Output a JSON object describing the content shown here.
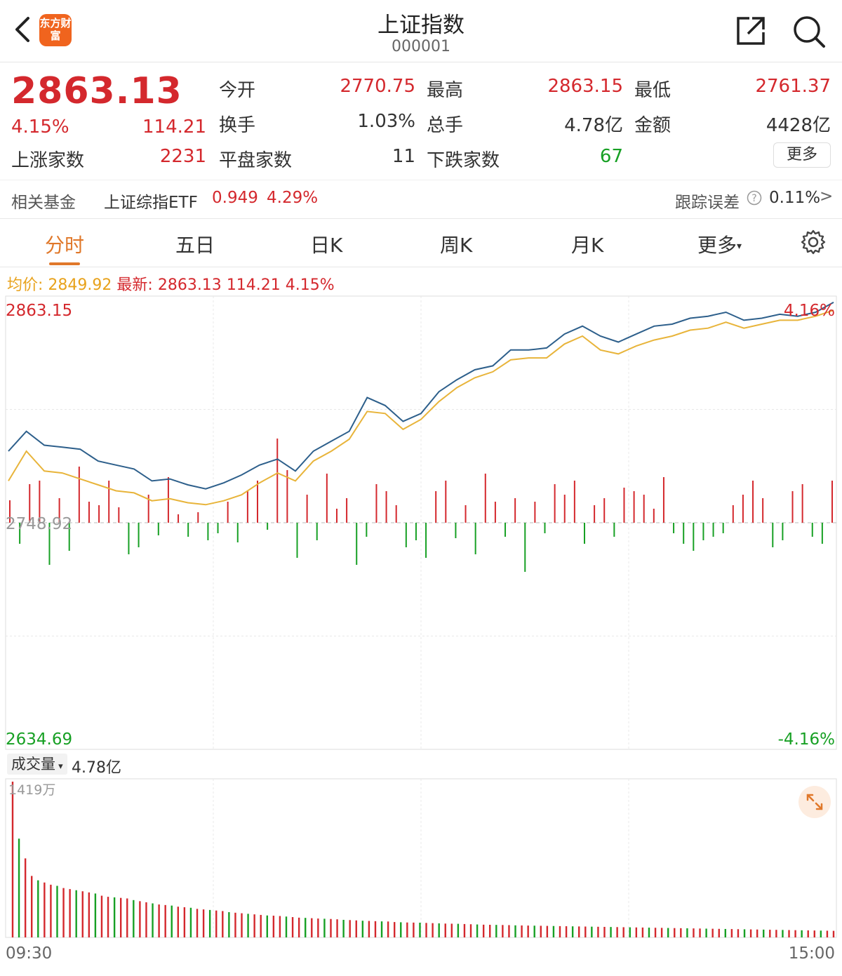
{
  "header": {
    "title": "上证指数",
    "code": "000001",
    "logo_text": "东方财富"
  },
  "quote": {
    "price": "2863.13",
    "change_pct": "4.15%",
    "change": "114.21",
    "open_label": "今开",
    "open": "2770.75",
    "high_label": "最高",
    "high": "2863.15",
    "low_label": "最低",
    "low": "2761.37",
    "turnover_label": "换手",
    "turnover": "1.03%",
    "volume_label": "总手",
    "volume": "4.78亿",
    "amount_label": "金额",
    "amount": "4428亿",
    "up_label": "上涨家数",
    "up": "2231",
    "flat_label": "平盘家数",
    "flat": "11",
    "down_label": "下跌家数",
    "down": "67",
    "more": "更多"
  },
  "fund": {
    "label": "相关基金",
    "name": "上证综指ETF",
    "price": "0.949",
    "pct": "4.29%",
    "tracking_label": "跟踪误差",
    "tracking_value": "0.11%",
    "arrow": ">"
  },
  "tabs": [
    "分时",
    "五日",
    "日K",
    "周K",
    "月K",
    "更多"
  ],
  "legend": {
    "avg_label": "均价:",
    "avg": "2849.92",
    "latest_label": "最新:",
    "latest": "2863.13",
    "change": "114.21",
    "pct": "4.15%"
  },
  "chart_data": {
    "type": "line",
    "y_top": "2863.15",
    "y_mid": "2748.92",
    "y_bottom": "2634.69",
    "pct_top": "4.16%",
    "pct_bottom": "-4.16%",
    "ylim": [
      2634.69,
      2863.15
    ],
    "x_start": "09:30",
    "x_end": "15:00",
    "series": [
      {
        "values": [
          2785,
          2795,
          2788,
          2787,
          2786,
          2780,
          2778,
          2776,
          2770,
          2771,
          2768,
          2766,
          2769,
          2773,
          2778,
          2781,
          2775,
          2785,
          2790,
          2795,
          2812,
          2808,
          2800,
          2804,
          2815,
          2821,
          2826,
          2828,
          2836,
          2836,
          2837,
          2844,
          2848,
          2843,
          2840,
          2844,
          2848,
          2849,
          2852,
          2853,
          2855,
          2851,
          2852,
          2854,
          2853,
          2855,
          2860
        ]
      },
      {
        "values": [
          2770,
          2785,
          2775,
          2774,
          2771,
          2768,
          2765,
          2764,
          2760,
          2761,
          2759,
          2758,
          2760,
          2763,
          2769,
          2774,
          2770,
          2780,
          2785,
          2791,
          2805,
          2804,
          2796,
          2801,
          2810,
          2817,
          2822,
          2825,
          2831,
          2832,
          2832,
          2839,
          2843,
          2836,
          2834,
          2838,
          2841,
          2843,
          2846,
          2847,
          2850,
          2847,
          2849,
          2851,
          2851,
          2853,
          2856
        ]
      }
    ],
    "diff_bars": [
      32,
      -30,
      55,
      60,
      -60,
      35,
      -40,
      80,
      30,
      25,
      60,
      22,
      -45,
      -35,
      40,
      -18,
      65,
      12,
      -20,
      15,
      -25,
      -15,
      30,
      -28,
      45,
      60,
      -10,
      120,
      75,
      -50,
      40,
      -25,
      70,
      20,
      35,
      -60,
      -20,
      55,
      45,
      25,
      -35,
      -25,
      -50,
      45,
      60,
      -22,
      25,
      -45,
      70,
      30,
      -20,
      35,
      -70,
      30,
      -15,
      55,
      40,
      60,
      -30,
      25,
      35,
      -20,
      50,
      45,
      40,
      20,
      65,
      -15,
      -30,
      -40,
      -25,
      -20,
      -15,
      25,
      40,
      60,
      35,
      -35,
      -25,
      45,
      55,
      -20,
      -30,
      60
    ],
    "vol_top": "1419万",
    "vol_bars": [
      1419,
      900,
      720,
      560,
      520,
      500,
      480,
      470,
      450,
      440,
      430,
      420,
      410,
      400,
      380,
      370,
      365,
      360,
      355,
      340,
      330,
      320,
      310,
      300,
      295,
      290,
      280,
      275,
      270,
      260,
      255,
      250,
      245,
      240,
      230,
      225,
      220,
      215,
      210,
      205,
      200,
      198,
      195,
      190,
      185,
      180,
      178,
      175,
      172,
      170,
      168,
      165,
      160,
      158,
      155,
      152,
      150,
      148,
      146,
      145,
      140,
      138,
      136,
      135,
      134,
      132,
      130,
      128,
      126,
      125,
      124,
      122,
      120,
      118,
      116,
      115,
      114,
      113,
      112,
      110,
      109,
      108,
      107,
      106,
      105,
      104,
      103,
      102,
      101,
      100,
      99,
      98,
      97,
      96,
      95,
      94,
      93,
      92,
      91,
      90,
      89,
      88,
      87,
      86,
      85,
      84,
      83,
      82,
      81,
      80,
      79,
      78,
      77,
      76,
      75,
      74,
      73,
      72,
      71,
      70,
      69,
      68,
      67,
      66,
      65,
      64,
      63,
      62,
      61,
      60
    ]
  },
  "volume": {
    "label": "成交量",
    "total": "4.78亿"
  },
  "colors": {
    "red": "#d4282d",
    "green": "#17a024",
    "price_line": "#2d5f8b",
    "avg_line": "#e8b43a",
    "accent": "#e0782a"
  },
  "icons": {
    "back": "back-icon",
    "share": "share-icon",
    "search": "search-icon",
    "help": "help-icon",
    "settings": "gear-icon",
    "expand": "expand-icon"
  }
}
